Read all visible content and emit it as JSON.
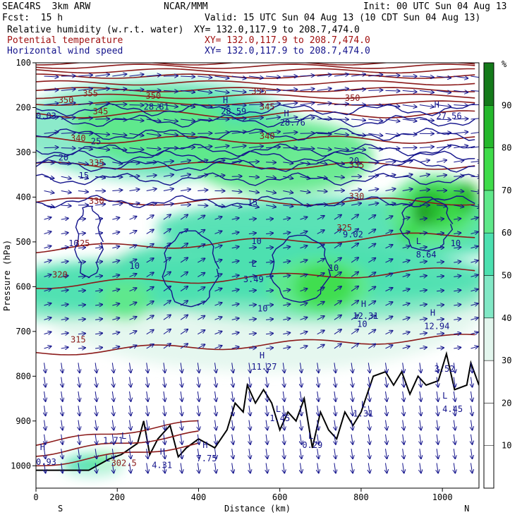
{
  "header": {
    "project": "SEAC4RS  3km ARW",
    "center": "NCAR/MMM",
    "init": "Init: 00 UTC Sun 04 Aug 13",
    "fcst": "Fcst:  15 h",
    "valid": "Valid: 15 UTC Sun 04 Aug 13 (10 CDT Sun 04 Aug 13)",
    "field1": "Relative humidity (w.r.t. water)",
    "field1_xy": "XY= 132.0,117.9 to 208.7,474.0",
    "field2": "Potential temperature",
    "field2_xy": "XY= 132.0,117.9 to 208.7,474.0",
    "field3": "Horizontal wind speed",
    "field3_xy": "XY= 132.0,117.9 to 208.7,474.0"
  },
  "colors": {
    "theta": "#8b1a1a",
    "wind": "#14148c",
    "terrain": "#000000",
    "rh": [
      "#ffffff",
      "#ffffff",
      "#ffffff",
      "#e3f6ee",
      "#82e8c6",
      "#4ce0b0",
      "#5fe88a",
      "#3fdc4a",
      "#25b82c",
      "#147a1a"
    ]
  },
  "chart_data": {
    "type": "heatmap",
    "xlabel": "Distance (km)",
    "ylabel": "Pressure (hPa)",
    "x_ticks": [
      0,
      200,
      400,
      600,
      800,
      1000
    ],
    "y_ticks": [
      100,
      200,
      300,
      400,
      500,
      600,
      700,
      800,
      900,
      1000
    ],
    "xlim": [
      0,
      1090
    ],
    "ylim": [
      1050,
      100
    ],
    "x_end_labels": [
      "S",
      "N"
    ],
    "colorbar": {
      "unit": "%",
      "levels": [
        10,
        20,
        30,
        40,
        50,
        60,
        70,
        80,
        90
      ]
    },
    "theta_contours": [
      {
        "label": "302.5",
        "x": 185,
        "p": 1000
      },
      {
        "label": "315",
        "x": 85,
        "p": 725
      },
      {
        "label": "320",
        "x": 40,
        "p": 580
      },
      {
        "label": "325",
        "x": 95,
        "p": 510
      },
      {
        "label": "325",
        "x": 740,
        "p": 475
      },
      {
        "label": "330",
        "x": 130,
        "p": 415
      },
      {
        "label": "330",
        "x": 770,
        "p": 405
      },
      {
        "label": "335",
        "x": 130,
        "p": 330
      },
      {
        "label": "335",
        "x": 770,
        "p": 335
      },
      {
        "label": "340",
        "x": 85,
        "p": 275
      },
      {
        "label": "340",
        "x": 550,
        "p": 270
      },
      {
        "label": "345",
        "x": 140,
        "p": 215
      },
      {
        "label": "345",
        "x": 550,
        "p": 205
      },
      {
        "label": "350",
        "x": 55,
        "p": 190
      },
      {
        "label": "350",
        "x": 270,
        "p": 180
      },
      {
        "label": "350",
        "x": 760,
        "p": 185
      },
      {
        "label": "355",
        "x": 115,
        "p": 175
      },
      {
        "label": "355",
        "x": 530,
        "p": 170
      }
    ],
    "wind_labels": [
      {
        "label": "10",
        "x": 80,
        "p": 510
      },
      {
        "label": "10",
        "x": 230,
        "p": 560
      },
      {
        "label": "10",
        "x": 530,
        "p": 505
      },
      {
        "label": "10",
        "x": 545,
        "p": 655
      },
      {
        "label": "10",
        "x": 720,
        "p": 565
      },
      {
        "label": "10",
        "x": 790,
        "p": 690
      },
      {
        "label": "10",
        "x": 1020,
        "p": 510
      },
      {
        "label": "15",
        "x": 105,
        "p": 358
      },
      {
        "label": "15",
        "x": 520,
        "p": 418
      },
      {
        "label": "20",
        "x": 55,
        "p": 318
      },
      {
        "label": "20",
        "x": 770,
        "p": 325
      },
      {
        "label": "25",
        "x": 135,
        "p": 282
      },
      {
        "label": "L",
        "x": 530,
        "p": 555
      },
      {
        "label": "L",
        "x": 590,
        "p": 880
      },
      {
        "label": "L",
        "x": 670,
        "p": 940
      },
      {
        "label": "L",
        "x": 800,
        "p": 870
      },
      {
        "label": "L",
        "x": 935,
        "p": 505
      },
      {
        "label": "L",
        "x": 1000,
        "p": 850
      },
      {
        "label": "L",
        "x": 210,
        "p": 940
      },
      {
        "label": "L",
        "x": 170,
        "p": 990
      },
      {
        "label": "H",
        "x": 10,
        "p": 965
      },
      {
        "label": "H",
        "x": 305,
        "p": 975
      },
      {
        "label": "H",
        "x": 410,
        "p": 960
      },
      {
        "label": "H",
        "x": 550,
        "p": 760
      },
      {
        "label": "H",
        "x": 800,
        "p": 645
      },
      {
        "label": "H",
        "x": 970,
        "p": 665
      },
      {
        "label": "H",
        "x": 460,
        "p": 190
      },
      {
        "label": "H",
        "x": 610,
        "p": 220
      },
      {
        "label": "H",
        "x": 980,
        "p": 200
      }
    ],
    "extrema_values": [
      {
        "label": "0.93",
        "x": 0,
        "p": 998
      },
      {
        "label": "1.71",
        "x": 165,
        "p": 950
      },
      {
        "label": "4.31",
        "x": 285,
        "p": 1005
      },
      {
        "label": "7.75",
        "x": 395,
        "p": 990
      },
      {
        "label": "11.27",
        "x": 530,
        "p": 785
      },
      {
        "label": "12.31",
        "x": 780,
        "p": 672
      },
      {
        "label": "12.94",
        "x": 955,
        "p": 695
      },
      {
        "label": "8.64",
        "x": 935,
        "p": 535
      },
      {
        "label": "9.02",
        "x": 755,
        "p": 490
      },
      {
        "label": "3.49",
        "x": 510,
        "p": 590
      },
      {
        "label": "1.45",
        "x": 575,
        "p": 900
      },
      {
        "label": "0.29",
        "x": 655,
        "p": 960
      },
      {
        "label": "1.31",
        "x": 780,
        "p": 890
      },
      {
        "label": "3.52",
        "x": 980,
        "p": 790
      },
      {
        "label": "4.45",
        "x": 1000,
        "p": 880
      },
      {
        "label": "28.81",
        "x": 265,
        "p": 205
      },
      {
        "label": "28.59",
        "x": 455,
        "p": 215
      },
      {
        "label": "28.76",
        "x": 600,
        "p": 240
      },
      {
        "label": "27.56",
        "x": 985,
        "p": 225
      },
      {
        "label": "0.03",
        "x": 0,
        "p": 225
      }
    ]
  }
}
